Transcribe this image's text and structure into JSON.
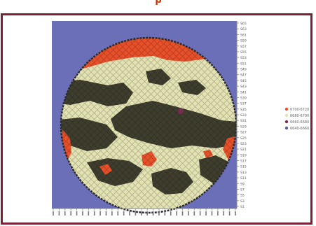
{
  "header": {
    "partial_text": "p"
  },
  "chart_data": {
    "type": "heatmap",
    "title": "",
    "xlabel": "",
    "ylabel": "",
    "colors": {
      "background": "#6b6fb8",
      "boundary": "#2b2b2b",
      "high": "#e8502a",
      "level2": "#e3e2b2",
      "level3": "#3f3e2e"
    },
    "y_ticks": [
      "S65",
      "S63",
      "S61",
      "S59",
      "S57",
      "S55",
      "S53",
      "S51",
      "S49",
      "S47",
      "S45",
      "S43",
      "S41",
      "S39",
      "S37",
      "S35",
      "S33",
      "S31",
      "S29",
      "S27",
      "S25",
      "S23",
      "S21",
      "S19",
      "S17",
      "S15",
      "S13",
      "S11",
      "S9",
      "S7",
      "S5",
      "S3",
      "S1"
    ],
    "x_tick_count": 32,
    "legend": [
      {
        "label": "6700-6720",
        "color": "#e8502a"
      },
      {
        "label": "6680-6700",
        "color": "#e3e2b2"
      },
      {
        "label": "6660-6680",
        "color": "#7a2a55"
      },
      {
        "label": "6640-6660",
        "color": "#5a5f9e"
      }
    ]
  }
}
